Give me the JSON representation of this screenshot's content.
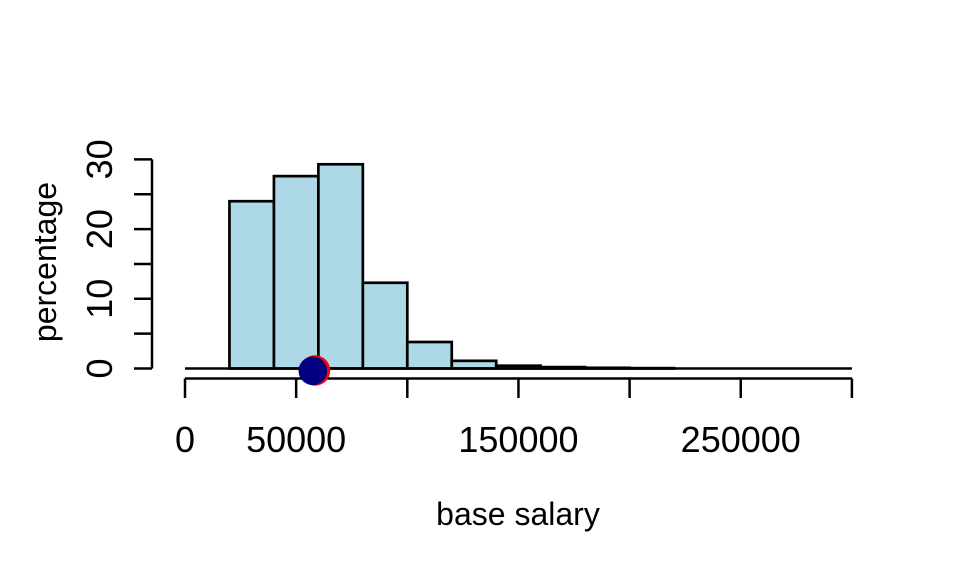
{
  "background_color": "#FFFFFF",
  "chart_data": {
    "type": "bar",
    "variant": "histogram",
    "xlabel": "base salary",
    "ylabel": "percentage",
    "xlim": [
      0,
      300000
    ],
    "ylim": [
      0,
      30
    ],
    "grid": false,
    "legend": false,
    "bin_edges": [
      0,
      20000,
      40000,
      60000,
      80000,
      100000,
      120000,
      140000,
      160000,
      180000,
      200000,
      220000,
      240000,
      260000,
      280000,
      300000
    ],
    "percentages": [
      0,
      24,
      27.6,
      29.3,
      12.3,
      3.8,
      1.1,
      0.4,
      0.2,
      0.1,
      0.05,
      0,
      0,
      0,
      0
    ],
    "x_ticks": [
      0,
      50000,
      100000,
      150000,
      200000,
      250000,
      300000
    ],
    "x_tick_labels": [
      "0",
      "50000",
      "",
      "150000",
      "",
      "250000",
      ""
    ],
    "y_ticks": [
      0,
      5,
      10,
      15,
      20,
      25,
      30
    ],
    "y_tick_labels": [
      "0",
      "",
      "10",
      "",
      "20",
      "",
      "30"
    ],
    "marker": {
      "x": 57500,
      "y": 0,
      "shape": "filled-circle",
      "fill": "#000080",
      "border": "#FF0000"
    },
    "colors": {
      "bar_fill": "#ADD8E6",
      "bar_border": "#000000",
      "axis": "#000000",
      "text": "#000000"
    }
  }
}
